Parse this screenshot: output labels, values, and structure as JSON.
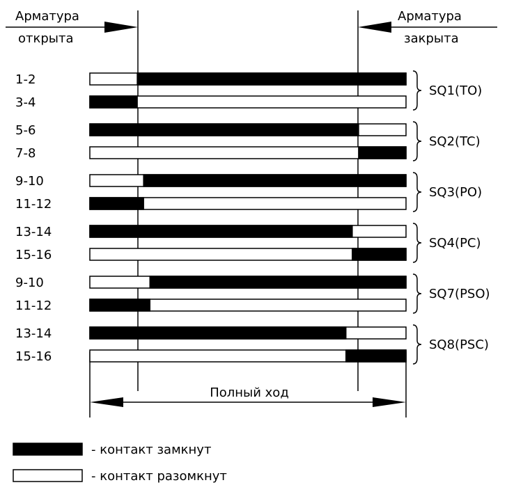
{
  "header": {
    "open_line1": "Арматура",
    "open_line2": "открыта",
    "closed_line1": "Арматура",
    "closed_line2": "закрыта"
  },
  "travel_label": "Полный ход",
  "colors": {
    "closed": "#000000",
    "open": "#ffffff",
    "line": "#000000"
  },
  "groups": [
    {
      "name": "SQ1(TO)",
      "rows": [
        {
          "label": "1-2",
          "closed": [
            [
              0.15,
              1.0
            ]
          ]
        },
        {
          "label": "3-4",
          "closed": [
            [
              0.0,
              0.15
            ]
          ]
        }
      ]
    },
    {
      "name": "SQ2(TC)",
      "rows": [
        {
          "label": "5-6",
          "closed": [
            [
              0.0,
              0.85
            ]
          ]
        },
        {
          "label": "7-8",
          "closed": [
            [
              0.85,
              1.0
            ]
          ]
        }
      ]
    },
    {
      "name": "SQ3(PO)",
      "rows": [
        {
          "label": "9-10",
          "closed": [
            [
              0.17,
              1.0
            ]
          ]
        },
        {
          "label": "11-12",
          "closed": [
            [
              0.0,
              0.17
            ]
          ]
        }
      ]
    },
    {
      "name": "SQ4(PC)",
      "rows": [
        {
          "label": "13-14",
          "closed": [
            [
              0.0,
              0.83
            ]
          ]
        },
        {
          "label": "15-16",
          "closed": [
            [
              0.83,
              1.0
            ]
          ]
        }
      ]
    },
    {
      "name": "SQ7(PSO)",
      "rows": [
        {
          "label": "9-10",
          "closed": [
            [
              0.19,
              1.0
            ]
          ]
        },
        {
          "label": "11-12",
          "closed": [
            [
              0.0,
              0.19
            ]
          ]
        }
      ]
    },
    {
      "name": "SQ8(PSC)",
      "rows": [
        {
          "label": "13-14",
          "closed": [
            [
              0.0,
              0.81
            ]
          ]
        },
        {
          "label": "15-16",
          "closed": [
            [
              0.81,
              1.0
            ]
          ]
        }
      ]
    }
  ],
  "legend": {
    "closed_text": "- контакт замкнут",
    "open_text": "- контакт разомкнут"
  }
}
